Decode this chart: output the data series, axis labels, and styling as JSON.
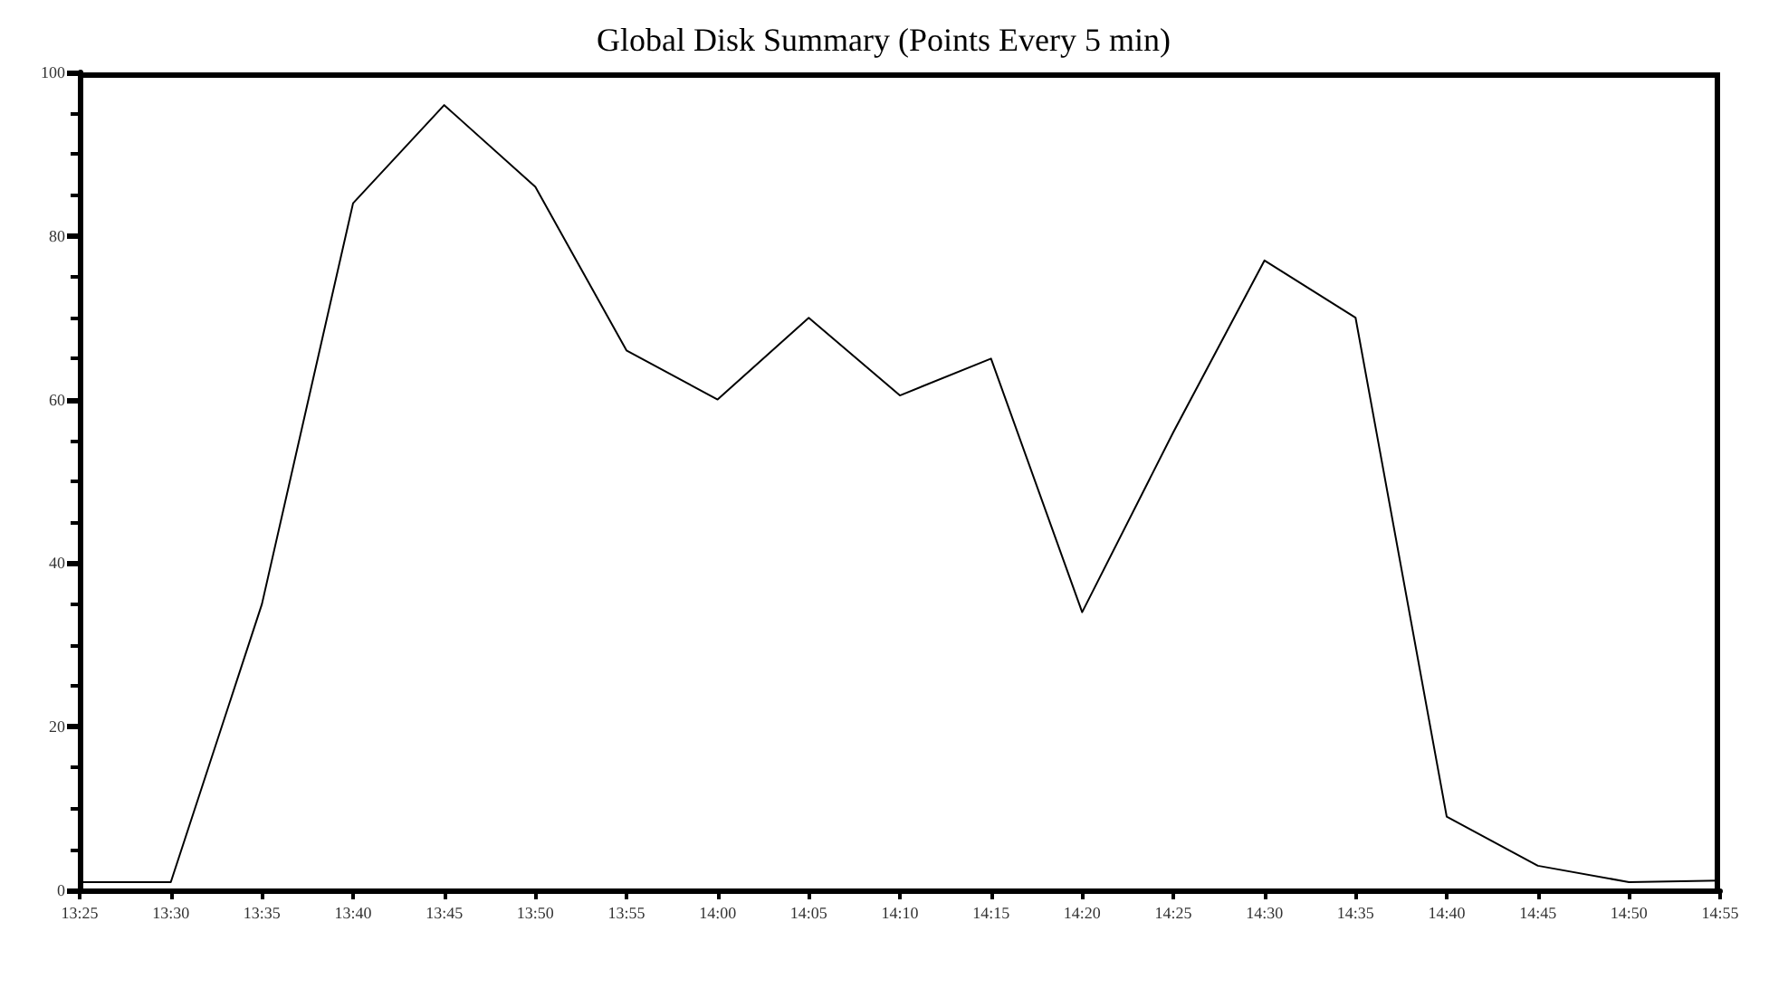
{
  "chart_data": {
    "type": "line",
    "title": "Global Disk Summary (Points Every 5 min)",
    "categories": [
      "13:25",
      "13:30",
      "13:35",
      "13:40",
      "13:45",
      "13:50",
      "13:55",
      "14:00",
      "14:05",
      "14:10",
      "14:15",
      "14:20",
      "14:25",
      "14:30",
      "14:35",
      "14:40",
      "14:45",
      "14:50",
      "14:55"
    ],
    "series": [
      {
        "color": "#000000",
        "values": [
          1,
          1,
          35,
          84,
          96,
          86,
          66,
          60,
          70,
          60.5,
          65,
          34,
          56,
          77,
          70,
          9,
          3,
          1,
          1.2
        ]
      }
    ],
    "ylim": [
      0,
      100
    ],
    "yticks": [
      0,
      20,
      40,
      60,
      80,
      100
    ],
    "grid": false,
    "marker": "none",
    "line_style": "solid"
  }
}
